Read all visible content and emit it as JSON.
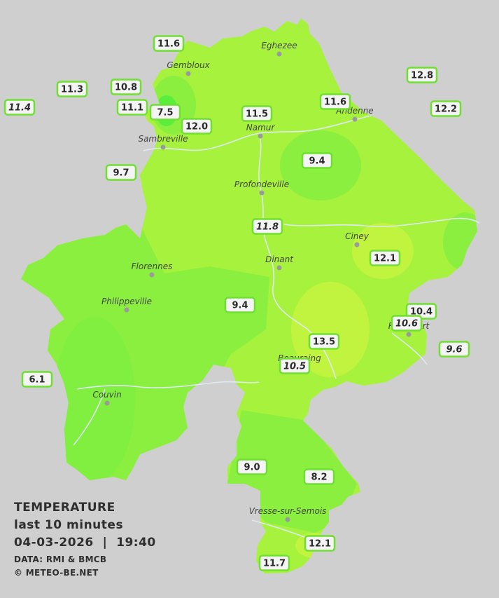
{
  "legend": {
    "title": "TEMPERATURE",
    "subtitle": "last 10 minutes",
    "datetime": "04-03-2026  |  19:40",
    "data_source": "DATA: RMI & BMCB",
    "copyright": "© METEO-BE.NET"
  },
  "colors": {
    "background": "#cfcfcf",
    "region_base": "#a7f23c",
    "warm_zone": "#c6f53e",
    "cool_zone": "#86ee3f",
    "cold_zone": "#58ec3c",
    "rivers": "#dfe9f3",
    "station_border": "#6fe030"
  },
  "cities": [
    {
      "name": "Eghezee"
    },
    {
      "name": "Gembloux"
    },
    {
      "name": "Andenne"
    },
    {
      "name": "Namur"
    },
    {
      "name": "Sambreville"
    },
    {
      "name": "Profondeville"
    },
    {
      "name": "Ciney"
    },
    {
      "name": "Dinant"
    },
    {
      "name": "Florennes"
    },
    {
      "name": "Philippeville"
    },
    {
      "name": "Rochefort"
    },
    {
      "name": "Beauraing"
    },
    {
      "name": "Couvin"
    },
    {
      "name": "Vresse-sur-Semois"
    }
  ],
  "stations": [
    {
      "value": "11.6",
      "italic": false
    },
    {
      "value": "12.8",
      "italic": false
    },
    {
      "value": "11.3",
      "italic": false
    },
    {
      "value": "10.8",
      "italic": false
    },
    {
      "value": "11.4",
      "italic": true
    },
    {
      "value": "11.1",
      "italic": false
    },
    {
      "value": "7.5",
      "italic": false
    },
    {
      "value": "11.5",
      "italic": false
    },
    {
      "value": "11.6",
      "italic": false
    },
    {
      "value": "12.2",
      "italic": false
    },
    {
      "value": "12.0",
      "italic": false
    },
    {
      "value": "9.7",
      "italic": false
    },
    {
      "value": "9.4",
      "italic": false
    },
    {
      "value": "11.8",
      "italic": true
    },
    {
      "value": "12.1",
      "italic": false
    },
    {
      "value": "9.4",
      "italic": false
    },
    {
      "value": "10.4",
      "italic": false
    },
    {
      "value": "10.6",
      "italic": true
    },
    {
      "value": "13.5",
      "italic": false
    },
    {
      "value": "9.6",
      "italic": true
    },
    {
      "value": "10.5",
      "italic": true
    },
    {
      "value": "6.1",
      "italic": false
    },
    {
      "value": "9.0",
      "italic": false
    },
    {
      "value": "8.2",
      "italic": false
    },
    {
      "value": "12.1",
      "italic": false
    },
    {
      "value": "11.7",
      "italic": false
    }
  ]
}
